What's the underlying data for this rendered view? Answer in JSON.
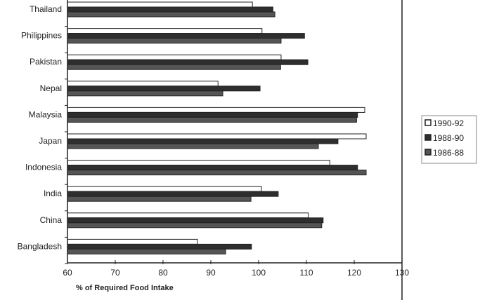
{
  "chart_data": {
    "type": "bar",
    "orientation": "horizontal",
    "title": "",
    "xlabel": "% of Required Food Intake",
    "ylabel": "",
    "xlim": [
      60,
      130
    ],
    "xticks": [
      60,
      70,
      80,
      90,
      100,
      110,
      120,
      130
    ],
    "categories": [
      "Thailand",
      "Philippines",
      "Pakistan",
      "Nepal",
      "Malaysia",
      "Japan",
      "Indonesia",
      "India",
      "China",
      "Bangladesh"
    ],
    "series": [
      {
        "name": "1990-92",
        "color": "#ffffff",
        "values": [
          98.7,
          100.7,
          104.7,
          91.5,
          122.2,
          122.5,
          114.9,
          100.6,
          110.4,
          87.2
        ]
      },
      {
        "name": "1988-90",
        "color": "#2e2e2e",
        "values": [
          103.0,
          109.6,
          110.3,
          100.3,
          120.7,
          116.6,
          120.7,
          104.1,
          113.5,
          98.5
        ]
      },
      {
        "name": "1986-88",
        "color": "#555555",
        "values": [
          103.4,
          104.7,
          104.6,
          92.5,
          120.5,
          112.5,
          122.5,
          98.4,
          113.2,
          93.1
        ]
      }
    ],
    "legend_position": "right",
    "grid": false
  }
}
